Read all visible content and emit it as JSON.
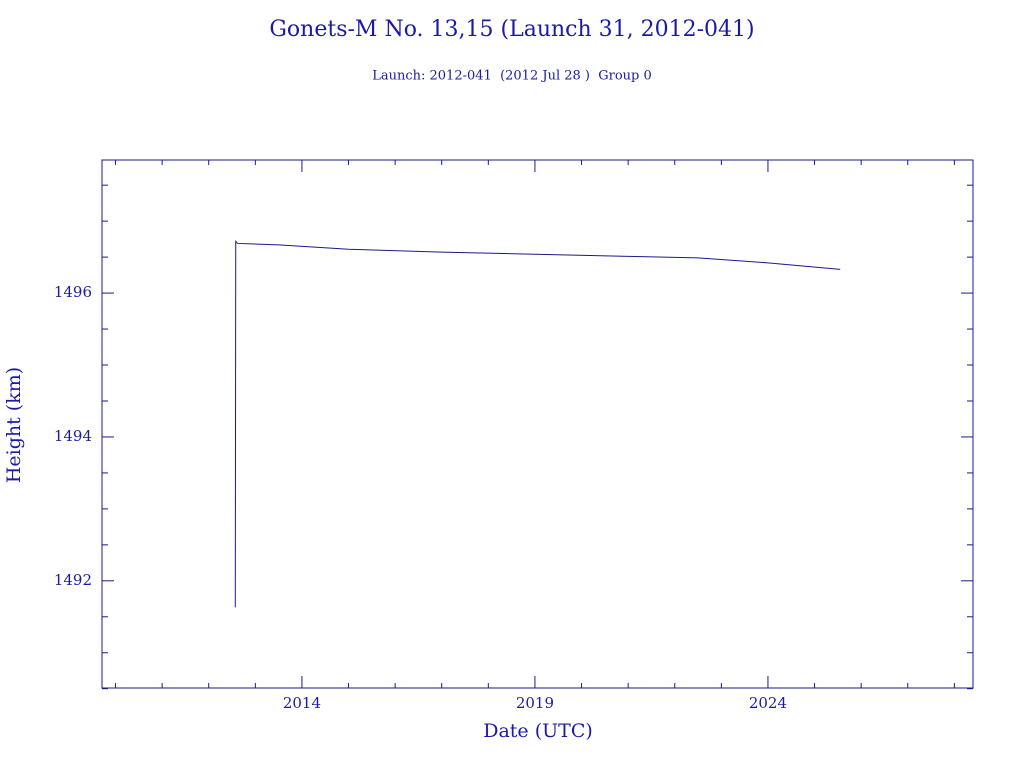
{
  "chart_data": {
    "type": "line",
    "title": "Gonets-M No. 13,15 (Launch 31, 2012-041)",
    "subtitle": "Launch: 2012-041  (2012 Jul 28 )  Group 0",
    "x_label": "Date (UTC)",
    "y_label": "Height (km)",
    "x": [
      2012.57,
      2012.58,
      2012.62,
      2013.5,
      2015,
      2017,
      2019,
      2021,
      2022.5,
      2024,
      2025.55
    ],
    "series": [
      {
        "color": "#1a1a8c",
        "values": [
          1491.63,
          1496.72,
          1496.69,
          1496.67,
          1496.61,
          1496.57,
          1496.54,
          1496.51,
          1496.49,
          1496.42,
          1496.33
        ]
      }
    ],
    "xlim": [
      2009.71,
      2028.4
    ],
    "ylim": [
      1490.51,
      1497.85
    ],
    "xticks": [
      2014,
      2019,
      2024
    ],
    "yticks": [
      1492,
      1494,
      1496
    ],
    "x_minor_ticks": [
      2010,
      2011,
      2012,
      2013,
      2015,
      2016,
      2017,
      2018,
      2020,
      2021,
      2022,
      2023,
      2025,
      2026,
      2027,
      2028
    ],
    "y_minor_ticks": [
      1490.5,
      1491,
      1491.5,
      1492.5,
      1493,
      1493.5,
      1494.5,
      1495,
      1495.5,
      1496.5,
      1497,
      1497.5
    ]
  }
}
